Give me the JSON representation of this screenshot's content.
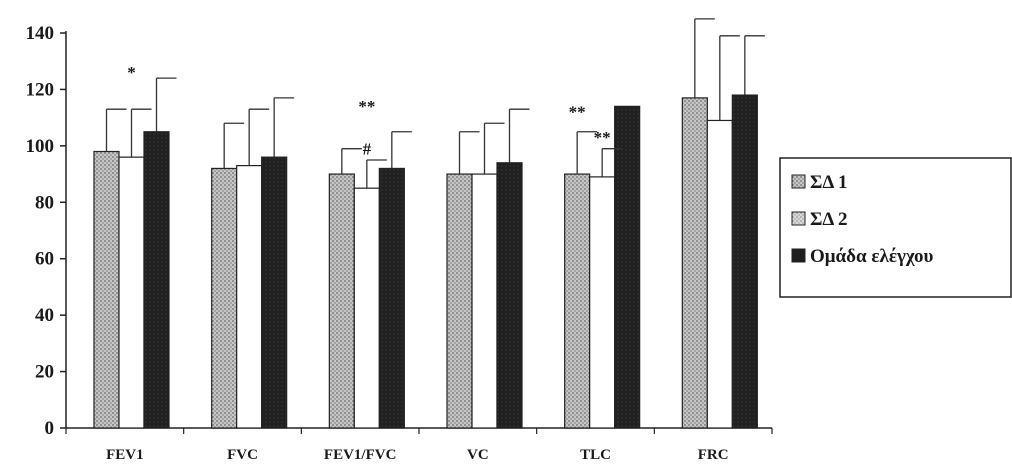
{
  "chart_data": {
    "type": "bar",
    "categories": [
      "FEV1",
      "FVC",
      "FEV1/FVC",
      "VC",
      "TLC",
      "FRC"
    ],
    "series": [
      {
        "name": "ΣΔ 1",
        "values": [
          98,
          92,
          90,
          90,
          90,
          117
        ],
        "errors": [
          15,
          16,
          9,
          15,
          15,
          28
        ],
        "color": "#b8b8b8",
        "pattern": "dots"
      },
      {
        "name": "ΣΔ 2",
        "values": [
          96,
          93,
          85,
          90,
          89,
          109
        ],
        "errors": [
          17,
          20,
          10,
          18,
          10,
          30
        ],
        "color": "#ffffff",
        "pattern": "none"
      },
      {
        "name": "Ομάδα ελέγχου",
        "values": [
          105,
          96,
          92,
          94,
          114,
          118
        ],
        "errors": [
          19,
          21,
          13,
          19,
          0,
          21
        ],
        "color": "#1e1e1e",
        "pattern": "solid"
      }
    ],
    "ylim": [
      0,
      140
    ],
    "yticks": [
      0,
      20,
      40,
      60,
      80,
      100,
      120,
      140
    ],
    "xlabel": "",
    "ylabel": "",
    "title": "",
    "legend_position": "right",
    "annotations": [
      {
        "text": "*",
        "category": "FEV1",
        "series": 1,
        "value": 124
      },
      {
        "text": "**",
        "category": "FEV1/FVC",
        "series": 1,
        "value": 112
      },
      {
        "text": "#",
        "category": "FEV1/FVC",
        "series": 1,
        "value": 97
      },
      {
        "text": "**",
        "category": "TLC",
        "series": 0,
        "value": 110
      },
      {
        "text": "**",
        "category": "TLC",
        "series": 1,
        "value": 101
      }
    ]
  }
}
